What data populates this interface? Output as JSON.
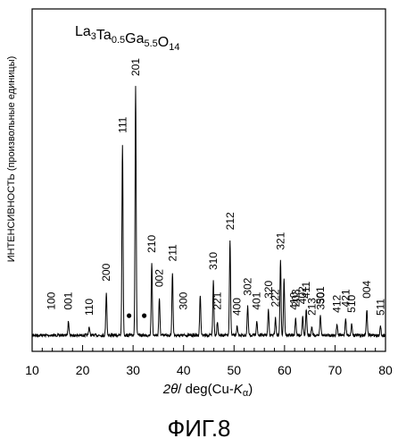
{
  "figure_caption": "ФИГ.8",
  "chart_data": {
    "type": "line",
    "title": "",
    "formula": {
      "base": "La",
      "parts": [
        {
          "t": "La",
          "s": "3"
        },
        {
          "t": "Ta",
          "s": "0.5"
        },
        {
          "t": "Ga",
          "s": "5.5"
        },
        {
          "t": "O",
          "s": "14"
        }
      ]
    },
    "xlabel": "2θ/ deg(Cu-Kα)",
    "xlabel_parts": {
      "theta": "2θ",
      "mid": "/ deg(Cu-",
      "k": "K",
      "alpha": "α",
      "end": ")"
    },
    "ylabel": "ИНТЕНСИВНОСТЬ (произвольные единицы)",
    "xlim": [
      10,
      80
    ],
    "ylim": [
      0,
      100
    ],
    "xticks": [
      "10",
      "20",
      "30",
      "40",
      "50",
      "60",
      "70",
      "80"
    ],
    "grid": false,
    "peaks": [
      {
        "x": 17.2,
        "y": 5,
        "label": "001"
      },
      {
        "x": 21.3,
        "y": 3,
        "label": "110"
      },
      {
        "x": 24.7,
        "y": 15,
        "label": "200"
      },
      {
        "x": 27.9,
        "y": 67,
        "label": "111"
      },
      {
        "x": 30.5,
        "y": 87,
        "label": "201"
      },
      {
        "x": 33.7,
        "y": 25,
        "label": "210"
      },
      {
        "x": 35.2,
        "y": 13,
        "label": "002"
      },
      {
        "x": 37.8,
        "y": 22,
        "label": "211"
      },
      {
        "x": 43.3,
        "y": 14,
        "label": ""
      },
      {
        "x": 45.9,
        "y": 19,
        "label": "310"
      },
      {
        "x": 46.7,
        "y": 5,
        "label": "221"
      },
      {
        "x": 49.2,
        "y": 33,
        "label": "212"
      },
      {
        "x": 50.6,
        "y": 3,
        "label": "400"
      },
      {
        "x": 52.7,
        "y": 10,
        "label": "302"
      },
      {
        "x": 54.5,
        "y": 5,
        "label": "401"
      },
      {
        "x": 56.8,
        "y": 9,
        "label": "320"
      },
      {
        "x": 58.2,
        "y": 6,
        "label": "222"
      },
      {
        "x": 59.2,
        "y": 26,
        "label": "321"
      },
      {
        "x": 59.9,
        "y": 20,
        "label": ""
      },
      {
        "x": 62.2,
        "y": 6,
        "label": "203"
      },
      {
        "x": 63.6,
        "y": 7,
        "label": "402"
      },
      {
        "x": 64.3,
        "y": 9,
        "label": "411"
      },
      {
        "x": 65.4,
        "y": 3,
        "label": "213"
      },
      {
        "x": 67.1,
        "y": 7,
        "label": "501"
      },
      {
        "x": 70.4,
        "y": 4,
        "label": "412"
      },
      {
        "x": 72.1,
        "y": 6,
        "label": "421"
      },
      {
        "x": 73.3,
        "y": 4,
        "label": "510"
      },
      {
        "x": 76.3,
        "y": 9,
        "label": "004"
      },
      {
        "x": 79.0,
        "y": 3,
        "label": "511"
      }
    ],
    "annotations": [
      {
        "label": "100",
        "x": 13.8,
        "y": 5
      },
      {
        "label": "300",
        "x": 40.0,
        "y": 5
      },
      {
        "label": "410",
        "x": 61.9,
        "y": 5
      },
      {
        "label": "330",
        "x": 67.2,
        "y": 5
      }
    ],
    "impurity_markers": [
      {
        "x": 29.2,
        "y": 7,
        "symbol": "●"
      },
      {
        "x": 32.2,
        "y": 7,
        "symbol": "●"
      }
    ]
  }
}
